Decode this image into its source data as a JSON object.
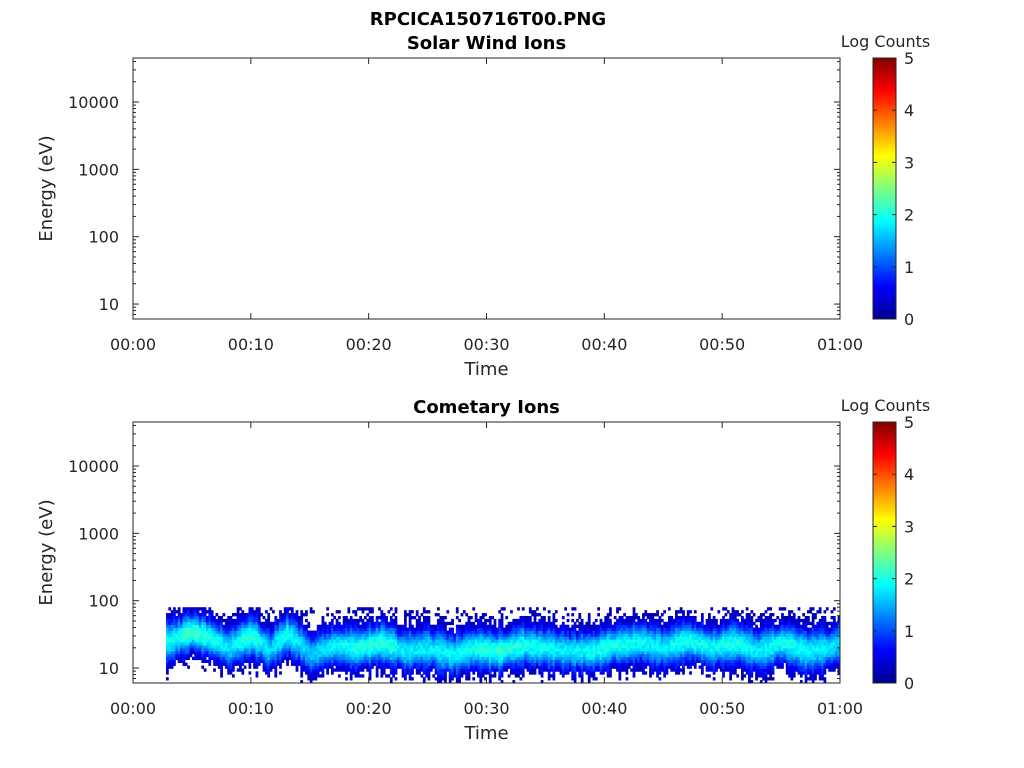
{
  "figure": {
    "title": "RPCICA150716T00.PNG"
  },
  "chart_data": [
    {
      "type": "heatmap",
      "title": "Solar Wind Ions",
      "xlabel": "Time",
      "ylabel": "Energy (eV)",
      "x_ticks": [
        "00:00",
        "00:10",
        "00:20",
        "00:30",
        "00:40",
        "00:50",
        "01:00"
      ],
      "xlim": [
        "00:00",
        "01:00"
      ],
      "y_scale": "log",
      "y_ticks": [
        10,
        100,
        1000,
        10000
      ],
      "y_tick_labels": [
        "10",
        "100",
        "1000",
        "10000"
      ],
      "ylim": [
        6,
        45000
      ],
      "colorbar": {
        "label": "Log Counts",
        "range": [
          0,
          5
        ],
        "ticks": [
          "0",
          "1",
          "2",
          "3",
          "4",
          "5"
        ],
        "colormap": "jet"
      },
      "data": "empty"
    },
    {
      "type": "heatmap",
      "title": "Cometary Ions",
      "xlabel": "Time",
      "ylabel": "Energy (eV)",
      "x_ticks": [
        "00:00",
        "00:10",
        "00:20",
        "00:30",
        "00:40",
        "00:50",
        "01:00"
      ],
      "xlim": [
        "00:00",
        "01:00"
      ],
      "y_scale": "log",
      "y_ticks": [
        10,
        100,
        1000,
        10000
      ],
      "y_tick_labels": [
        "10",
        "100",
        "1000",
        "10000"
      ],
      "ylim": [
        6,
        45000
      ],
      "colorbar": {
        "label": "Log Counts",
        "range": [
          0,
          5
        ],
        "ticks": [
          "0",
          "1",
          "2",
          "3",
          "4",
          "5"
        ],
        "colormap": "jet"
      },
      "data_extent": {
        "time_start_min": 2.8,
        "time_end_min": 60,
        "energy_max_ev": 80,
        "energy_min_ev": 6
      },
      "peak_energy_ev": [
        [
          3,
          25
        ],
        [
          5,
          35
        ],
        [
          6.5,
          28
        ],
        [
          8,
          20
        ],
        [
          10,
          30
        ],
        [
          11.5,
          18
        ],
        [
          13,
          32
        ],
        [
          15,
          16
        ],
        [
          17,
          22
        ],
        [
          19,
          20
        ],
        [
          21,
          24
        ],
        [
          23,
          18
        ],
        [
          25,
          20
        ],
        [
          27,
          16
        ],
        [
          29,
          20
        ],
        [
          31,
          18
        ],
        [
          33,
          22
        ],
        [
          35,
          20
        ],
        [
          37,
          18
        ],
        [
          39,
          18
        ],
        [
          41,
          22
        ],
        [
          43,
          24
        ],
        [
          45,
          20
        ],
        [
          47,
          26
        ],
        [
          49,
          20
        ],
        [
          51,
          24
        ],
        [
          53,
          18
        ],
        [
          55,
          24
        ],
        [
          57,
          18
        ],
        [
          59,
          20
        ],
        [
          60,
          24
        ]
      ],
      "peak_log_counts": [
        [
          3,
          1.9
        ],
        [
          5,
          2.2
        ],
        [
          6.5,
          2.0
        ],
        [
          8,
          1.8
        ],
        [
          10,
          2.1
        ],
        [
          11.5,
          1.7
        ],
        [
          13,
          2.0
        ],
        [
          15,
          1.6
        ],
        [
          17,
          1.9
        ],
        [
          19,
          2.0
        ],
        [
          21,
          2.1
        ],
        [
          23,
          1.8
        ],
        [
          25,
          1.8
        ],
        [
          27,
          1.9
        ],
        [
          29,
          2.0
        ],
        [
          31,
          2.1
        ],
        [
          33,
          2.0
        ],
        [
          35,
          1.9
        ],
        [
          37,
          1.8
        ],
        [
          39,
          2.0
        ],
        [
          41,
          2.0
        ],
        [
          43,
          1.9
        ],
        [
          45,
          1.8
        ],
        [
          47,
          2.0
        ],
        [
          49,
          1.9
        ],
        [
          51,
          2.0
        ],
        [
          53,
          1.8
        ],
        [
          55,
          2.0
        ],
        [
          57,
          1.9
        ],
        [
          59,
          1.8
        ],
        [
          60,
          1.7
        ]
      ]
    }
  ]
}
